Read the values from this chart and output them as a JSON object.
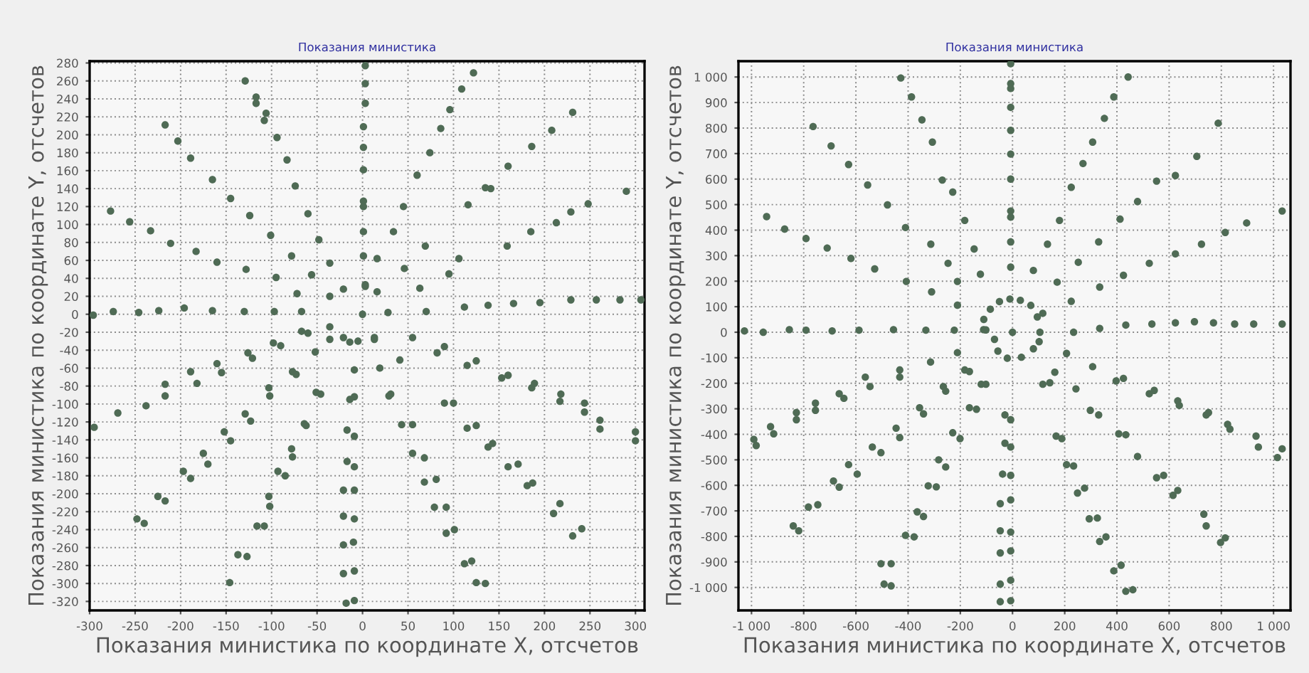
{
  "chart_data": [
    {
      "type": "scatter",
      "title": "Показания министика",
      "xlabel": "Показания министика по координате X, отсчетов",
      "ylabel": "Показания министика по координате Y, отсчетов",
      "xlim": [
        -300,
        310
      ],
      "ylim": [
        -330,
        282
      ],
      "xticks": [
        -300,
        -250,
        -200,
        -150,
        -100,
        -50,
        0,
        50,
        100,
        150,
        200,
        250,
        300
      ],
      "yticks": [
        -320,
        -300,
        -280,
        -260,
        -240,
        -220,
        -200,
        -180,
        -160,
        -140,
        -120,
        -100,
        -80,
        -60,
        -40,
        -20,
        0,
        20,
        40,
        60,
        80,
        100,
        120,
        140,
        160,
        180,
        200,
        220,
        240,
        260,
        280
      ],
      "grid": true,
      "marker": "circle",
      "series": [
        {
          "color": "#4f6b55",
          "x": [
            -129,
            -117,
            -117,
            -106,
            -108,
            -94,
            -83,
            -74,
            -60,
            -48,
            -36,
            0,
            3,
            3,
            3,
            1,
            1,
            1,
            1,
            1,
            1,
            1,
            -217,
            -203,
            -189,
            -165,
            -145,
            -124,
            -101,
            -78,
            -56,
            -277,
            -256,
            -233,
            -211,
            -183,
            -160,
            -128,
            -95,
            -72,
            -296,
            -274,
            -246,
            -224,
            -196,
            -165,
            -130,
            -97,
            -67,
            109,
            96,
            86,
            74,
            60,
            45,
            34,
            16,
            3,
            122,
            116,
            135,
            141,
            95,
            106,
            69,
            46,
            63,
            159,
            185,
            186,
            208,
            231,
            229,
            248,
            290,
            160,
            213,
            112,
            138,
            166,
            195,
            229,
            257,
            283,
            306,
            70,
            -36,
            -21,
            3,
            16,
            28,
            -36,
            -21,
            -5,
            13,
            -295,
            -269,
            -238,
            -217,
            -217,
            -189,
            -182,
            -160,
            -155,
            -126,
            -121,
            -98,
            -90,
            -67,
            -60,
            -248,
            -240,
            -225,
            -217,
            -197,
            -189,
            -175,
            -170,
            -152,
            -145,
            -129,
            -123,
            -103,
            -102,
            -77,
            -73,
            -52,
            -36,
            -146,
            -137,
            -127,
            -116,
            -108,
            -103,
            -102,
            -93,
            -85,
            -78,
            -77,
            -64,
            -62,
            -51,
            -46,
            -18,
            -9,
            -21,
            -9,
            -21,
            -10,
            -21,
            -9,
            -21,
            -9,
            -17,
            -9,
            -17,
            -9,
            -14,
            -9,
            -9,
            -14,
            13,
            19,
            29,
            31,
            41,
            55,
            43,
            55,
            55,
            68,
            68,
            81,
            79,
            92,
            92,
            101,
            112,
            120,
            125,
            135,
            82,
            90,
            90,
            100,
            115,
            125,
            115,
            125,
            138,
            143,
            153,
            160,
            160,
            171,
            181,
            187,
            186,
            189,
            210,
            217,
            217,
            218,
            231,
            241,
            244,
            244,
            261,
            261,
            300,
            300
          ],
          "values": [
            260,
            242,
            235,
            224,
            216,
            197,
            172,
            143,
            112,
            83,
            57,
            0,
            277,
            257,
            235,
            209,
            186,
            161,
            126,
            120,
            92,
            65,
            211,
            193,
            174,
            150,
            129,
            110,
            88,
            65,
            44,
            115,
            103,
            93,
            79,
            70,
            58,
            50,
            41,
            23,
            -1,
            3,
            2,
            4,
            7,
            4,
            3,
            3,
            3,
            251,
            228,
            207,
            180,
            155,
            120,
            92,
            62,
            33,
            269,
            122,
            141,
            140,
            45,
            62,
            76,
            51,
            29,
            76,
            92,
            187,
            205,
            225,
            114,
            123,
            137,
            165,
            102,
            8,
            10,
            12,
            13,
            16,
            16,
            16,
            16,
            3,
            20,
            28,
            31,
            25,
            2,
            -14,
            -26,
            -30,
            -26,
            -126,
            -110,
            -102,
            -78,
            -91,
            -64,
            -77,
            -55,
            -65,
            -43,
            -49,
            -32,
            -35,
            -19,
            -21,
            -228,
            -233,
            -203,
            -208,
            -175,
            -183,
            -155,
            -167,
            -131,
            -141,
            -111,
            -119,
            -82,
            -91,
            -64,
            -67,
            -42,
            -28,
            -299,
            -268,
            -270,
            -236,
            -236,
            -203,
            -214,
            -175,
            -180,
            -150,
            -159,
            -122,
            -124,
            -87,
            -89,
            -322,
            -319,
            -289,
            -286,
            -257,
            -254,
            -225,
            -228,
            -196,
            -196,
            -164,
            -170,
            -129,
            -136,
            -95,
            -92,
            -62,
            -31,
            -28,
            -60,
            -91,
            -89,
            -51,
            -26,
            -123,
            -123,
            -155,
            -160,
            -187,
            -184,
            -215,
            -215,
            -244,
            -240,
            -278,
            -275,
            -299,
            -300,
            -43,
            -36,
            -99,
            -99,
            -57,
            -52,
            -127,
            -124,
            -148,
            -144,
            -71,
            -68,
            -170,
            -167,
            -191,
            -188,
            -82,
            -77,
            -222,
            -211,
            -97,
            -89,
            -247,
            -239,
            -109,
            -99,
            -128,
            -118,
            -141,
            -131
          ]
        }
      ]
    },
    {
      "type": "scatter",
      "title": "Показания министика",
      "xlabel": "Показания министика по координате X, отсчетов",
      "ylabel": "Показания министика по координате Y, отсчетов",
      "xlim": [
        -1050,
        1065
      ],
      "ylim": [
        -1090,
        1062
      ],
      "xticks": [
        {
          "value": -1000,
          "label": "-1 000"
        },
        -800,
        -600,
        -400,
        -200,
        0,
        200,
        400,
        600,
        800,
        {
          "value": 1000,
          "label": "1 000"
        }
      ],
      "yticks": [
        {
          "value": -1000,
          "label": "-1 000"
        },
        -900,
        -800,
        -700,
        -600,
        -500,
        -400,
        -300,
        -200,
        -100,
        0,
        100,
        200,
        300,
        400,
        500,
        600,
        700,
        800,
        900,
        {
          "value": 1000,
          "label": "1 000"
        }
      ],
      "grid": true,
      "marker": "circle",
      "series": [
        {
          "color": "#4f6b55",
          "x": [
            -428,
            -387,
            -347,
            -307,
            -269,
            -229,
            -183,
            -147,
            -123,
            -764,
            -695,
            -628,
            -555,
            -479,
            -410,
            -313,
            -247,
            -211,
            -942,
            -873,
            -791,
            -710,
            -619,
            -528,
            -407,
            -310,
            -211,
            -1027,
            -955,
            -855,
            -791,
            -691,
            -588,
            -456,
            -332,
            -223,
            -111,
            -7,
            -7,
            -7,
            -7,
            -7,
            -7,
            -7,
            -7,
            -7,
            -7,
            -7,
            443,
            388,
            352,
            307,
            270,
            225,
            180,
            134,
            80,
            788,
            706,
            624,
            552,
            479,
            412,
            330,
            252,
            171,
            1033,
            897,
            815,
            724,
            624,
            524,
            425,
            334,
            225,
            116,
            234,
            334,
            434,
            534,
            624,
            697,
            770,
            851,
            924,
            1033,
            -110,
            -85,
            -50,
            -10,
            30,
            70,
            95,
            105,
            0,
            -991,
            -982,
            -927,
            -915,
            -828,
            -828,
            -755,
            -755,
            -664,
            -646,
            -564,
            -546,
            -432,
            -432,
            -356,
            -341,
            -265,
            -256,
            -183,
            -165,
            -211,
            -314,
            -120,
            -102,
            -165,
            -138,
            -686,
            -664,
            -746,
            -782,
            -628,
            -595,
            -537,
            -504,
            -446,
            -432,
            -504,
            -465,
            -492,
            -465,
            -410,
            -377,
            -365,
            -341,
            -323,
            -292,
            -283,
            -256,
            -229,
            -201,
            -840,
            -819,
            -29,
            -7,
            -29,
            -7,
            -38,
            -7,
            -47,
            -7,
            -47,
            -7,
            -47,
            -7,
            -47,
            -7,
            -47,
            -7,
            116,
            143,
            167,
            189,
            207,
            234,
            249,
            276,
            294,
            325,
            334,
            358,
            388,
            416,
            434,
            461,
            162,
            243,
            298,
            330,
            407,
            434,
            479,
            552,
            579,
            615,
            633,
            733,
            742,
            797,
            815,
            207,
            307,
            397,
            425,
            524,
            543,
            633,
            639,
            742,
            751,
            824,
            833,
            933,
            942,
            1015,
            1033,
            -69,
            -56,
            -20,
            34,
            80,
            102,
            -102
          ],
          "values": [
            996,
            922,
            832,
            745,
            596,
            549,
            438,
            326,
            227,
            806,
            730,
            657,
            577,
            499,
            410,
            345,
            270,
            199,
            453,
            404,
            367,
            330,
            289,
            248,
            199,
            158,
            106,
            5,
            0,
            10,
            8,
            5,
            8,
            10,
            8,
            8,
            10,
            1052,
            974,
            955,
            881,
            791,
            698,
            600,
            475,
            451,
            354,
            255,
            1000,
            922,
            838,
            745,
            661,
            568,
            438,
            345,
            242,
            819,
            689,
            614,
            592,
            512,
            443,
            354,
            274,
            196,
            475,
            428,
            391,
            345,
            307,
            270,
            223,
            177,
            121,
            74,
            0,
            15,
            28,
            32,
            37,
            41,
            37,
            32,
            32,
            32,
            50,
            90,
            120,
            130,
            125,
            105,
            60,
            0,
            0,
            -420,
            -444,
            -370,
            -398,
            -315,
            -343,
            -278,
            -306,
            -241,
            -259,
            -176,
            -213,
            -148,
            -176,
            -296,
            -320,
            -213,
            -231,
            -148,
            -154,
            -80,
            -117,
            -204,
            -204,
            -296,
            -302,
            -583,
            -607,
            -676,
            -685,
            -519,
            -556,
            -450,
            -472,
            -376,
            -413,
            -907,
            -907,
            -987,
            -994,
            -796,
            -802,
            -704,
            -722,
            -602,
            -606,
            -500,
            -528,
            -394,
            -417,
            -759,
            -778,
            -324,
            -343,
            -435,
            -450,
            -556,
            -561,
            -672,
            -657,
            -778,
            -783,
            -865,
            -857,
            -987,
            -972,
            -1056,
            -1052,
            -204,
            -198,
            -407,
            -417,
            -519,
            -524,
            -630,
            -611,
            -731,
            -728,
            -820,
            -802,
            -935,
            -913,
            -1015,
            -1009,
            -157,
            -222,
            -306,
            -324,
            -398,
            -402,
            -487,
            -570,
            -561,
            -639,
            -620,
            -713,
            -759,
            -824,
            -806,
            -83,
            -135,
            -191,
            -181,
            -241,
            -228,
            -269,
            -287,
            -324,
            -315,
            -361,
            -380,
            -407,
            -450,
            -491,
            -457,
            -28,
            -74,
            -102,
            -98,
            -65,
            -37,
            9
          ]
        }
      ]
    }
  ]
}
